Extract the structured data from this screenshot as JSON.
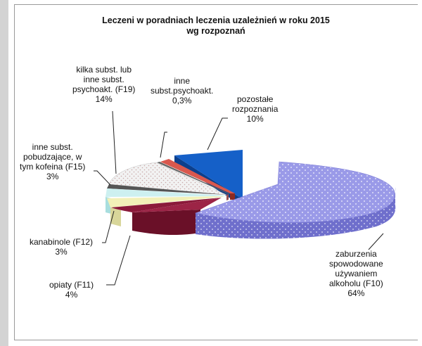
{
  "chart_data": {
    "type": "pie",
    "title": "Leczeni w poradniach leczenia uzależnień w roku 2015",
    "subtitle": "wg rozpoznań",
    "slices": [
      {
        "key": "f10",
        "label_lines": [
          "zaburzenia",
          "spowodowane",
          "używaniem",
          "alkoholu (F10)"
        ],
        "value_label": "64%",
        "value": 64,
        "color": "#9a9ae8",
        "pattern": "dots"
      },
      {
        "key": "f11",
        "label_lines": [
          "opiaty (F11)"
        ],
        "value_label": "4%",
        "value": 4,
        "color": "#8b1a3a",
        "pattern": "solid"
      },
      {
        "key": "f12",
        "label_lines": [
          "kanabinole (F12)"
        ],
        "value_label": "3%",
        "value": 3,
        "color": "#f2f0b8",
        "pattern": "solid"
      },
      {
        "key": "f15",
        "label_lines": [
          "inne subst.",
          "pobudzające, w",
          "tym kofeina (F15)"
        ],
        "value_label": "3%",
        "value": 3,
        "color": "#cdf0f0",
        "pattern": "solid"
      },
      {
        "key": "f19",
        "label_lines": [
          "kilka subst. lub",
          "inne subst.",
          "psychoakt. (F19)"
        ],
        "value_label": "14%",
        "value": 14,
        "color": "#eeeeee",
        "pattern": "dots"
      },
      {
        "key": "other_psych",
        "label_lines": [
          "inne",
          "subst.psychoakt."
        ],
        "value_label": "0,3%",
        "value": 0.3,
        "color": "#666666",
        "pattern": "solid"
      },
      {
        "key": "other_diag",
        "label_lines": [
          "pozostałe",
          "rozpoznania"
        ],
        "value_label": "10%",
        "value": 10,
        "color": "#d9584e",
        "pattern": "solid"
      },
      {
        "key": "exploded_blue",
        "label_lines": [],
        "value_label": "",
        "value": 5,
        "color": "#1560c8",
        "pattern": "solid"
      }
    ]
  }
}
